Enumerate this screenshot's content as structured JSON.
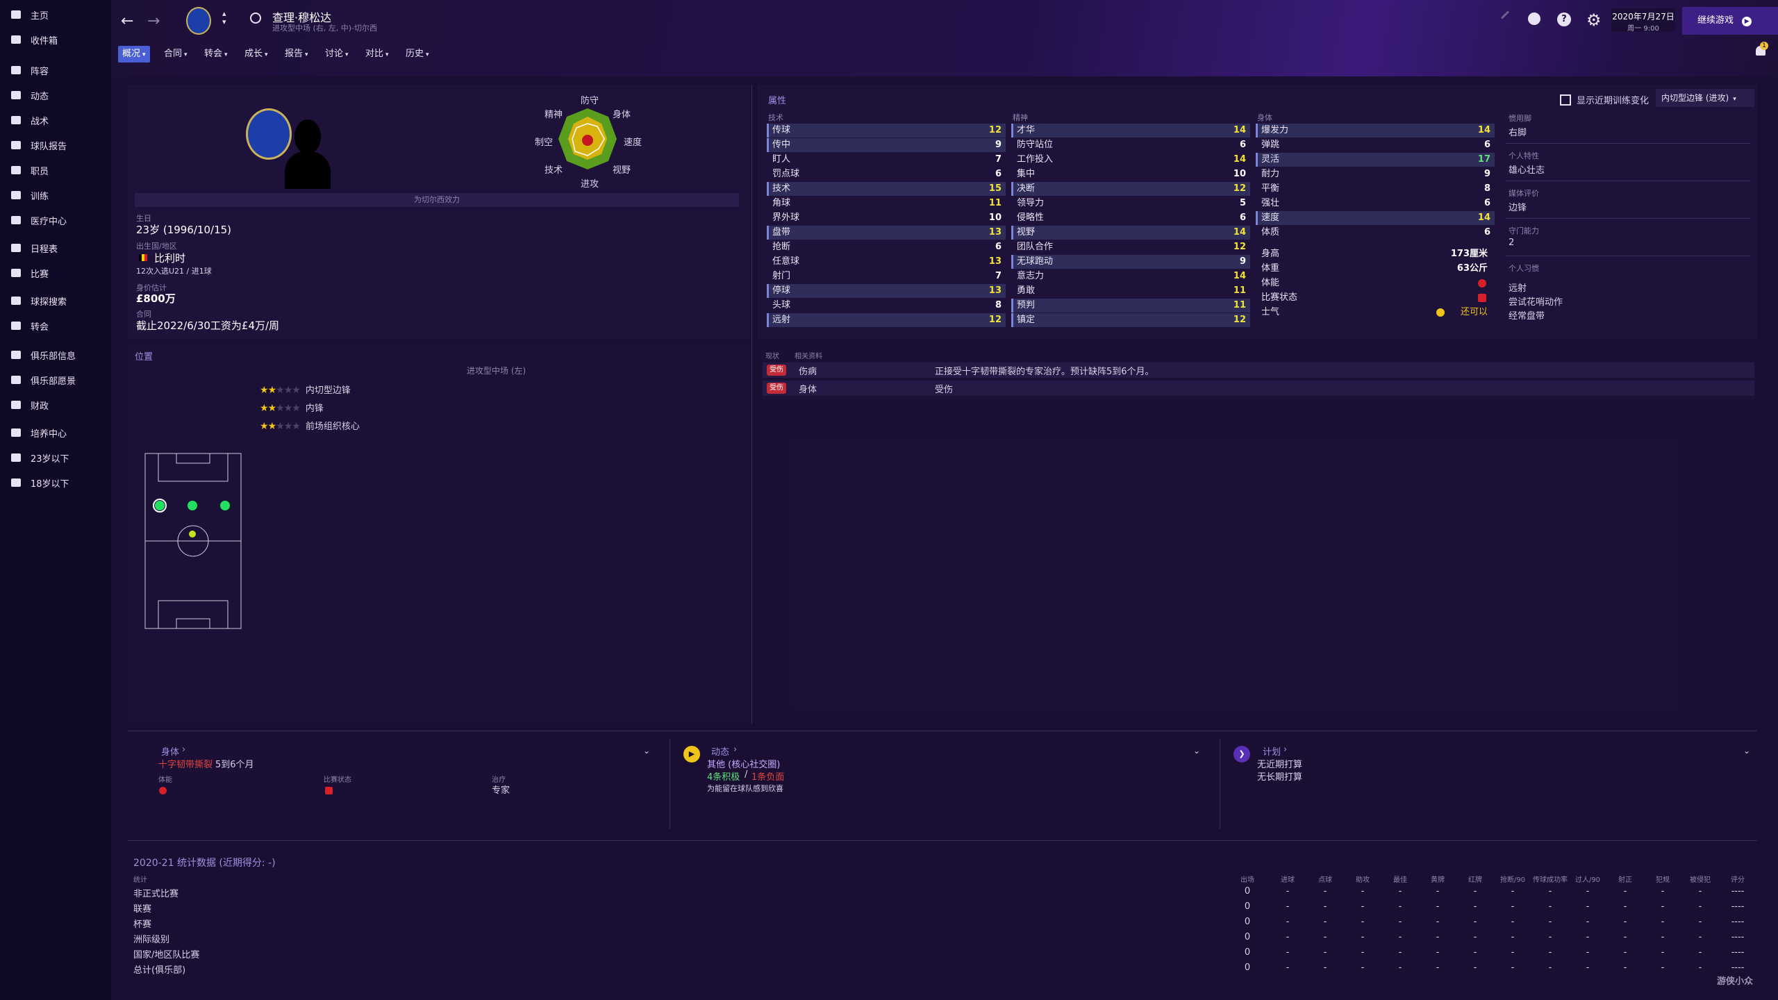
{
  "sidebar": {
    "items": [
      {
        "label": "主页",
        "icon": "home-icon"
      },
      {
        "label": "收件箱",
        "icon": "inbox-icon"
      },
      {
        "label": "阵容",
        "icon": "squad-icon"
      },
      {
        "label": "动态",
        "icon": "dynamics-icon"
      },
      {
        "label": "战术",
        "icon": "tactics-icon"
      },
      {
        "label": "球队报告",
        "icon": "report-icon"
      },
      {
        "label": "职员",
        "icon": "staff-icon"
      },
      {
        "label": "训练",
        "icon": "training-icon"
      },
      {
        "label": "医疗中心",
        "icon": "medical-icon"
      },
      {
        "label": "日程表",
        "icon": "calendar-icon"
      },
      {
        "label": "比赛",
        "icon": "trophy-icon"
      },
      {
        "label": "球探搜索",
        "icon": "scouting-icon"
      },
      {
        "label": "转会",
        "icon": "transfer-icon"
      },
      {
        "label": "俱乐部信息",
        "icon": "club-info-icon"
      },
      {
        "label": "俱乐部愿景",
        "icon": "club-vision-icon"
      },
      {
        "label": "财政",
        "icon": "finance-icon"
      },
      {
        "label": "培养中心",
        "icon": "development-icon"
      },
      {
        "label": "23岁以下",
        "icon": "u23-icon"
      },
      {
        "label": "18岁以下",
        "icon": "u18-icon"
      }
    ]
  },
  "header": {
    "player_name": "查理·穆松达",
    "player_sub": "进攻型中场 (右, 左, 中)-切尔西",
    "date": "2020年7月27日",
    "time": "周一 9:00",
    "continue_label": "继续游戏",
    "notification_count": "1"
  },
  "menu": [
    {
      "label": "概况",
      "active": true
    },
    {
      "label": "合同"
    },
    {
      "label": "转会"
    },
    {
      "label": "成长"
    },
    {
      "label": "报告"
    },
    {
      "label": "讨论"
    },
    {
      "label": "对比"
    },
    {
      "label": "历史"
    }
  ],
  "profile": {
    "plays_for": "为切尔西效力",
    "birth_label": "生日",
    "birth_value": "23岁 (1996/10/15)",
    "nation_label": "出生国/地区",
    "nation_value": "比利时",
    "caps": "12次入选U21 / 进1球",
    "value_label": "身价估计",
    "value_value": "£800万",
    "contract_label": "合同",
    "contract_value": "截止2022/6/30工资为£4万/周"
  },
  "radar": {
    "labels": {
      "top": "防守",
      "tr": "身体",
      "right": "速度",
      "br": "视野",
      "bottom": "进攻",
      "bl": "技术",
      "left": "制空",
      "tl": "精神"
    }
  },
  "attributes": {
    "title": "属性",
    "show_training_label": "显示近期训练变化",
    "role_select": "内切型边锋 (进攻)",
    "tech_header": "技术",
    "mental_header": "精神",
    "phys_header": "身体",
    "technical": [
      {
        "name": "传球",
        "value": "12",
        "hl": true,
        "color": "yellow"
      },
      {
        "name": "传中",
        "value": "9",
        "hl": true,
        "color": "white"
      },
      {
        "name": "盯人",
        "value": "7",
        "hl": false,
        "color": "white"
      },
      {
        "name": "罚点球",
        "value": "6",
        "hl": false,
        "color": "white"
      },
      {
        "name": "技术",
        "value": "15",
        "hl": true,
        "color": "yellow"
      },
      {
        "name": "角球",
        "value": "11",
        "hl": false,
        "color": "yellow"
      },
      {
        "name": "界外球",
        "value": "10",
        "hl": false,
        "color": "white"
      },
      {
        "name": "盘带",
        "value": "13",
        "hl": true,
        "color": "yellow"
      },
      {
        "name": "抢断",
        "value": "6",
        "hl": false,
        "color": "white"
      },
      {
        "name": "任意球",
        "value": "13",
        "hl": false,
        "color": "yellow"
      },
      {
        "name": "射门",
        "value": "7",
        "hl": false,
        "color": "white"
      },
      {
        "name": "停球",
        "value": "13",
        "hl": true,
        "color": "yellow"
      },
      {
        "name": "头球",
        "value": "8",
        "hl": false,
        "color": "white"
      },
      {
        "name": "远射",
        "value": "12",
        "hl": true,
        "color": "yellow"
      }
    ],
    "mental": [
      {
        "name": "才华",
        "value": "14",
        "hl": true,
        "color": "yellow"
      },
      {
        "name": "防守站位",
        "value": "6",
        "hl": false,
        "color": "white"
      },
      {
        "name": "工作投入",
        "value": "14",
        "hl": false,
        "color": "yellow"
      },
      {
        "name": "集中",
        "value": "10",
        "hl": false,
        "color": "white"
      },
      {
        "name": "决断",
        "value": "12",
        "hl": true,
        "color": "yellow"
      },
      {
        "name": "领导力",
        "value": "5",
        "hl": false,
        "color": "white"
      },
      {
        "name": "侵略性",
        "value": "6",
        "hl": false,
        "color": "white"
      },
      {
        "name": "视野",
        "value": "14",
        "hl": true,
        "color": "yellow"
      },
      {
        "name": "团队合作",
        "value": "12",
        "hl": false,
        "color": "yellow"
      },
      {
        "name": "无球跑动",
        "value": "9",
        "hl": true,
        "color": "white"
      },
      {
        "name": "意志力",
        "value": "14",
        "hl": false,
        "color": "yellow"
      },
      {
        "name": "勇敢",
        "value": "11",
        "hl": false,
        "color": "yellow"
      },
      {
        "name": "预判",
        "value": "11",
        "hl": true,
        "color": "yellow"
      },
      {
        "name": "镇定",
        "value": "12",
        "hl": true,
        "color": "yellow"
      }
    ],
    "physical": [
      {
        "name": "爆发力",
        "value": "14",
        "hl": true,
        "color": "yellow"
      },
      {
        "name": "弹跳",
        "value": "6",
        "hl": false,
        "color": "white"
      },
      {
        "name": "灵活",
        "value": "17",
        "hl": true,
        "color": "green"
      },
      {
        "name": "耐力",
        "value": "9",
        "hl": false,
        "color": "white"
      },
      {
        "name": "平衡",
        "value": "8",
        "hl": false,
        "color": "white"
      },
      {
        "name": "强壮",
        "value": "6",
        "hl": false,
        "color": "white"
      },
      {
        "name": "速度",
        "value": "14",
        "hl": true,
        "color": "yellow"
      },
      {
        "name": "体质",
        "value": "6",
        "hl": false,
        "color": "white"
      }
    ],
    "physical_info": [
      {
        "name": "身高",
        "value": "173厘米"
      },
      {
        "name": "体重",
        "value": "63公斤"
      }
    ],
    "condition_label": "体能",
    "match_fitness_label": "比赛状态",
    "morale_label": "士气",
    "morale_value": "还可以"
  },
  "traits": {
    "foot_label": "惯用脚",
    "foot_value": "右脚",
    "personality_label": "个人特性",
    "personality_value": "雄心壮志",
    "media_label": "媒体评价",
    "media_value": "边锋",
    "gk_label": "守门能力",
    "gk_value": "2",
    "habits_label": "个人习惯",
    "habits": [
      "远射",
      "尝试花哨动作",
      "经常盘带"
    ]
  },
  "positions": {
    "title": "位置",
    "main": "进攻型中场 (左)",
    "roles": [
      {
        "label": "内切型边锋",
        "stars": 2
      },
      {
        "label": "内锋",
        "stars": 2
      },
      {
        "label": "前场组织核心",
        "stars": 2
      }
    ]
  },
  "injury": {
    "col_status": "现状",
    "col_info": "相关资料",
    "rows": [
      {
        "badge": "受伤",
        "type": "伤病",
        "detail": "正接受十字韧带撕裂的专家治疗。预计缺阵5到6个月。"
      },
      {
        "badge": "受伤",
        "type": "身体",
        "detail": "受伤"
      }
    ]
  },
  "bottom": {
    "body_title": "身体",
    "body_injury": "十字韧带撕裂",
    "body_duration": "5到6个月",
    "body_cond_label": "体能",
    "body_fit_label": "比赛状态",
    "body_treat_label": "治疗",
    "body_treat_value": "专家",
    "dyn_title": "动态",
    "dyn_group": "其他 (核心社交圈)",
    "dyn_pos": "4条积极",
    "dyn_sep": "/",
    "dyn_neg": "1条负面",
    "dyn_note": "为能留在球队感到欣喜",
    "plan_title": "计划",
    "plan_short": "无近期打算",
    "plan_long": "无长期打算"
  },
  "stats": {
    "title": "2020-21 统计数据 (近期得分: -)",
    "col_label": "统计",
    "columns": [
      "出场",
      "进球",
      "点球",
      "助攻",
      "最佳",
      "黄牌",
      "红牌",
      "抢断/90",
      "传球成功率",
      "过人/90",
      "射正",
      "犯规",
      "被侵犯",
      "评分"
    ],
    "rows": [
      {
        "label": "非正式比赛",
        "values": [
          "0",
          "-",
          "-",
          "-",
          "-",
          "-",
          "-",
          "-",
          "-",
          "-",
          "-",
          "-",
          "-",
          "----"
        ]
      },
      {
        "label": "联赛",
        "values": [
          "0",
          "-",
          "-",
          "-",
          "-",
          "-",
          "-",
          "-",
          "-",
          "-",
          "-",
          "-",
          "-",
          "----"
        ]
      },
      {
        "label": "杯赛",
        "values": [
          "0",
          "-",
          "-",
          "-",
          "-",
          "-",
          "-",
          "-",
          "-",
          "-",
          "-",
          "-",
          "-",
          "----"
        ]
      },
      {
        "label": "洲际级别",
        "values": [
          "0",
          "-",
          "-",
          "-",
          "-",
          "-",
          "-",
          "-",
          "-",
          "-",
          "-",
          "-",
          "-",
          "----"
        ]
      },
      {
        "label": "国家/地区队比赛",
        "values": [
          "0",
          "-",
          "-",
          "-",
          "-",
          "-",
          "-",
          "-",
          "-",
          "-",
          "-",
          "-",
          "-",
          "----"
        ]
      },
      {
        "label": "总计(俱乐部)",
        "values": [
          "0",
          "-",
          "-",
          "-",
          "-",
          "-",
          "-",
          "-",
          "-",
          "-",
          "-",
          "-",
          "-",
          "----"
        ]
      }
    ]
  },
  "watermark": "游侠小众"
}
